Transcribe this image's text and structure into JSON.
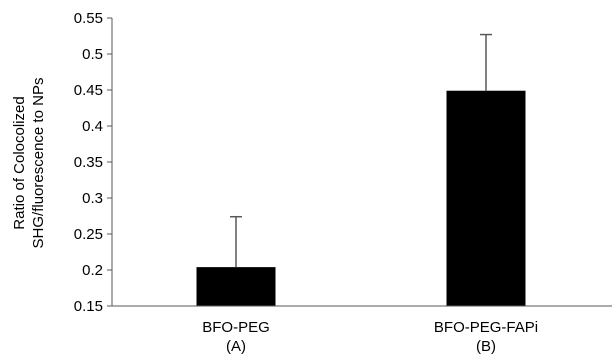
{
  "chart_data": {
    "type": "bar",
    "categories": [
      "BFO-PEG",
      "BFO-PEG-FAPi"
    ],
    "category_sublabels": [
      "(A)",
      "(B)"
    ],
    "values": [
      0.204,
      0.449
    ],
    "error_upper": [
      0.274,
      0.527
    ],
    "ylabel_lines": [
      "Ratio of Colocolized",
      "SHG/fluorescence to NPs"
    ],
    "xlabel": "",
    "title": "",
    "ylim": [
      0.15,
      0.55
    ],
    "yticks": [
      0.15,
      0.2,
      0.25,
      0.3,
      0.35,
      0.4,
      0.45,
      0.5,
      0.55
    ],
    "ytick_labels": [
      "0.15",
      "0.2",
      "0.25",
      "0.3",
      "0.35",
      "0.4",
      "0.45",
      "0.5",
      "0.55"
    ],
    "grid": false,
    "legend": "none",
    "bar_color": "#000000",
    "axis_color": "#595959"
  }
}
